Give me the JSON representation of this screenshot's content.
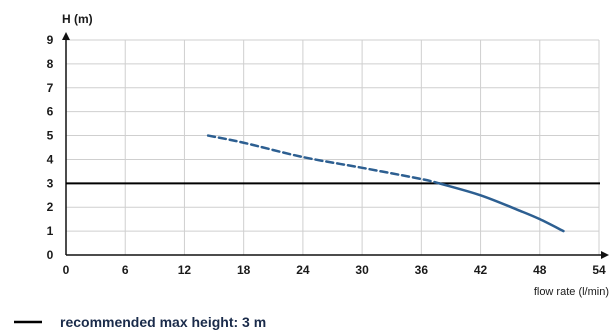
{
  "chart_data": {
    "type": "line",
    "ylabel": "H (m)",
    "xlabel": "flow rate (l/min)",
    "xlim": [
      0,
      54
    ],
    "ylim": [
      0,
      9
    ],
    "x_ticks": [
      0,
      6,
      12,
      18,
      24,
      30,
      36,
      42,
      48,
      54
    ],
    "y_ticks": [
      0,
      1,
      2,
      3,
      4,
      5,
      6,
      7,
      8,
      9
    ],
    "grid": true,
    "legend_position": "bottom-left",
    "series": [
      {
        "style": "dashed",
        "color": "#2d5f91",
        "points": [
          [
            14.4,
            5.0
          ],
          [
            18,
            4.7
          ],
          [
            24,
            4.1
          ],
          [
            30,
            3.65
          ],
          [
            36,
            3.18
          ],
          [
            37.8,
            3.0
          ]
        ]
      },
      {
        "style": "solid",
        "color": "#2d5f91",
        "points": [
          [
            37.8,
            3.0
          ],
          [
            42,
            2.5
          ],
          [
            46,
            1.85
          ],
          [
            48,
            1.5
          ],
          [
            50.4,
            1.0
          ]
        ]
      }
    ],
    "reference_lines": [
      {
        "axis": "y",
        "value": 3,
        "color": "#000000",
        "label": "recommended max height: 3 m"
      }
    ],
    "legend": [
      {
        "label": "recommended max height: 3 m",
        "color": "#000000"
      }
    ]
  }
}
